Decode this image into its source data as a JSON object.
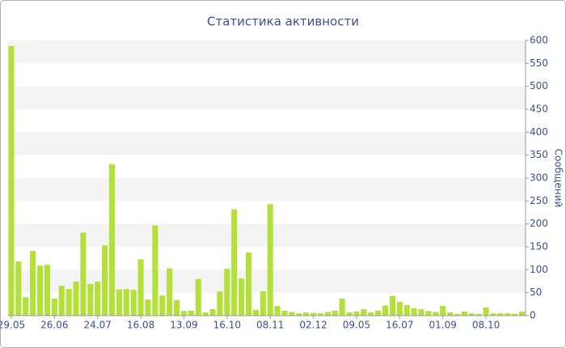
{
  "chart_data": {
    "type": "bar",
    "title": "Статистика активности",
    "y_label": "Сообщений",
    "categories": [
      "29.05",
      null,
      null,
      null,
      null,
      null,
      "26.06",
      null,
      null,
      null,
      null,
      null,
      "24.07",
      null,
      null,
      null,
      null,
      null,
      "16.08",
      null,
      null,
      null,
      null,
      null,
      "13.09",
      null,
      null,
      null,
      null,
      null,
      "16.10",
      null,
      null,
      null,
      null,
      null,
      "08.11",
      null,
      null,
      null,
      null,
      null,
      "02.12",
      null,
      null,
      null,
      null,
      null,
      "09.05",
      null,
      null,
      null,
      null,
      null,
      "16.07",
      null,
      null,
      null,
      null,
      null,
      "01.09",
      null,
      null,
      null,
      null,
      null,
      "08.10",
      null,
      null,
      null,
      null,
      null
    ],
    "values": [
      588,
      118,
      40,
      141,
      109,
      111,
      37,
      65,
      58,
      74,
      181,
      69,
      74,
      153,
      330,
      57,
      58,
      56,
      123,
      35,
      197,
      44,
      103,
      34,
      10,
      11,
      80,
      7,
      14,
      53,
      102,
      232,
      81,
      138,
      13,
      53,
      243,
      21,
      11,
      8,
      5,
      7,
      6,
      5,
      8,
      11,
      37,
      7,
      9,
      14,
      7,
      11,
      22,
      43,
      30,
      23,
      16,
      14,
      10,
      8,
      21,
      7,
      4,
      9,
      5,
      4,
      18,
      5,
      5,
      5,
      4,
      9
    ],
    "color": "#b3e03a",
    "ylim": [
      0,
      600
    ],
    "yticks": [
      0,
      50,
      100,
      150,
      200,
      250,
      300,
      350,
      400,
      450,
      500,
      550,
      600
    ],
    "grid": true
  }
}
